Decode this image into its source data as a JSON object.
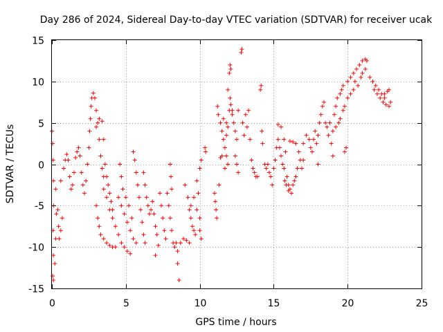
{
  "chart_data": {
    "type": "scatter",
    "title": "Day 286 of 2024, Sidereal Day-to-day VTEC variation (SDTVAR) for receiver ucak",
    "xlabel": "GPS time / hours",
    "ylabel": "SDTVAR / TECUs",
    "xlim": [
      0,
      25
    ],
    "ylim": [
      -15,
      15
    ],
    "xticks": [
      0,
      5,
      10,
      15,
      20,
      25
    ],
    "yticks": [
      -15,
      -10,
      -5,
      0,
      5,
      10,
      15
    ],
    "xtick_labels": [
      "0",
      "5",
      "10",
      "15",
      "20",
      "25"
    ],
    "ytick_labels": [
      "-15",
      "-10",
      "-5",
      "0",
      "5",
      "10",
      "15"
    ],
    "grid": true,
    "marker": "plus",
    "color": "#ff0000",
    "series": [
      {
        "name": "SDTVAR",
        "points": [
          [
            0.0,
            4.0
          ],
          [
            0.05,
            2.5
          ],
          [
            0.08,
            0.5
          ],
          [
            0.1,
            -2.0
          ],
          [
            0.12,
            -5.0
          ],
          [
            0.08,
            -8.0
          ],
          [
            0.1,
            -11.0
          ],
          [
            0.05,
            -13.5
          ],
          [
            0.1,
            -14.0
          ],
          [
            0.2,
            -12.0
          ],
          [
            0.25,
            -9.0
          ],
          [
            0.3,
            -6.0
          ],
          [
            0.25,
            -3.0
          ],
          [
            0.4,
            -5.5
          ],
          [
            0.45,
            -7.5
          ],
          [
            0.5,
            -9.0
          ],
          [
            0.6,
            -8.0
          ],
          [
            0.7,
            -6.5
          ],
          [
            0.6,
            -2.0
          ],
          [
            0.8,
            -0.5
          ],
          [
            0.9,
            0.5
          ],
          [
            1.0,
            1.2
          ],
          [
            1.1,
            0.5
          ],
          [
            1.2,
            -1.5
          ],
          [
            1.3,
            -3.0
          ],
          [
            1.4,
            -2.5
          ],
          [
            1.5,
            -1.0
          ],
          [
            1.6,
            0.8
          ],
          [
            1.7,
            1.5
          ],
          [
            1.8,
            2.0
          ],
          [
            1.9,
            1.0
          ],
          [
            2.0,
            -1.0
          ],
          [
            2.1,
            -2.5
          ],
          [
            2.2,
            -3.5
          ],
          [
            2.3,
            -2.0
          ],
          [
            2.4,
            0.0
          ],
          [
            2.5,
            2.0
          ],
          [
            2.55,
            4.0
          ],
          [
            2.6,
            5.5
          ],
          [
            2.65,
            7.0
          ],
          [
            2.7,
            8.0
          ],
          [
            2.8,
            8.6
          ],
          [
            2.9,
            8.0
          ],
          [
            3.0,
            6.5
          ],
          [
            3.1,
            5.0
          ],
          [
            3.2,
            3.0
          ],
          [
            3.3,
            1.0
          ],
          [
            3.4,
            -0.5
          ],
          [
            3.5,
            -1.5
          ],
          [
            3.0,
            4.5
          ],
          [
            3.2,
            5.5
          ],
          [
            3.4,
            5.2
          ],
          [
            3.5,
            3.0
          ],
          [
            3.6,
            0.0
          ],
          [
            3.7,
            -1.5
          ],
          [
            3.8,
            -2.5
          ],
          [
            3.9,
            -3.5
          ],
          [
            4.0,
            -4.5
          ],
          [
            4.1,
            -5.5
          ],
          [
            3.0,
            -5.0
          ],
          [
            3.1,
            -6.5
          ],
          [
            3.2,
            -7.5
          ],
          [
            3.3,
            -8.5
          ],
          [
            3.5,
            -9.0
          ],
          [
            3.7,
            -9.5
          ],
          [
            3.9,
            -9.8
          ],
          [
            4.1,
            -10.0
          ],
          [
            4.3,
            -10.0
          ],
          [
            3.5,
            -3.0
          ],
          [
            3.7,
            -4.0
          ],
          [
            3.9,
            -5.5
          ],
          [
            4.1,
            -6.5
          ],
          [
            4.3,
            -7.5
          ],
          [
            4.5,
            -8.5
          ],
          [
            4.7,
            -9.5
          ],
          [
            4.9,
            -10.0
          ],
          [
            5.1,
            -10.5
          ],
          [
            5.3,
            -10.8
          ],
          [
            4.5,
            -4.0
          ],
          [
            4.7,
            -5.0
          ],
          [
            4.9,
            -6.0
          ],
          [
            5.1,
            -7.0
          ],
          [
            5.3,
            -8.0
          ],
          [
            5.5,
            -9.0
          ],
          [
            5.7,
            -9.5
          ],
          [
            4.6,
            0.0
          ],
          [
            4.7,
            -1.5
          ],
          [
            4.8,
            -3.0
          ],
          [
            5.0,
            -4.0
          ],
          [
            5.2,
            -5.0
          ],
          [
            5.4,
            -6.5
          ],
          [
            5.5,
            1.5
          ],
          [
            5.6,
            0.5
          ],
          [
            5.7,
            -1.0
          ],
          [
            5.8,
            -2.5
          ],
          [
            5.9,
            -4.0
          ],
          [
            6.0,
            -5.5
          ],
          [
            6.1,
            -7.0
          ],
          [
            6.2,
            -8.5
          ],
          [
            6.3,
            -9.5
          ],
          [
            6.2,
            -1.0
          ],
          [
            6.3,
            -2.5
          ],
          [
            6.4,
            -4.0
          ],
          [
            6.5,
            -5.0
          ],
          [
            6.6,
            -6.0
          ],
          [
            6.7,
            -5.5
          ],
          [
            6.8,
            -4.5
          ],
          [
            6.9,
            -6.0
          ],
          [
            7.0,
            -7.5
          ],
          [
            7.1,
            -8.5
          ],
          [
            7.3,
            -3.5
          ],
          [
            7.4,
            -5.0
          ],
          [
            7.5,
            -6.5
          ],
          [
            7.6,
            -8.0
          ],
          [
            7.7,
            -9.0
          ],
          [
            7.2,
            -9.8
          ],
          [
            7.0,
            -11.0
          ],
          [
            7.8,
            -3.5
          ],
          [
            7.9,
            -5.0
          ],
          [
            8.0,
            -6.5
          ],
          [
            8.1,
            -8.0
          ],
          [
            8.2,
            -9.5
          ],
          [
            8.3,
            -10.0
          ],
          [
            8.0,
            0.0
          ],
          [
            8.05,
            -1.5
          ],
          [
            8.1,
            -3.0
          ],
          [
            8.4,
            -9.5
          ],
          [
            8.5,
            -12.0
          ],
          [
            8.6,
            -14.0
          ],
          [
            8.5,
            -10.5
          ],
          [
            8.7,
            -9.5
          ],
          [
            8.9,
            -9.0
          ],
          [
            9.1,
            -9.2
          ],
          [
            9.3,
            -9.5
          ],
          [
            9.0,
            -2.5
          ],
          [
            9.2,
            -4.0
          ],
          [
            9.3,
            -5.5
          ],
          [
            9.4,
            -6.5
          ],
          [
            9.5,
            -7.5
          ],
          [
            9.6,
            -8.0
          ],
          [
            9.7,
            -8.5
          ],
          [
            9.4,
            -5.0
          ],
          [
            9.6,
            -4.0
          ],
          [
            9.8,
            -5.5
          ],
          [
            10.0,
            -6.5
          ],
          [
            10.0,
            -8.0
          ],
          [
            10.1,
            -9.0
          ],
          [
            9.8,
            -2.0
          ],
          [
            9.9,
            -3.5
          ],
          [
            10.0,
            -0.5
          ],
          [
            10.1,
            0.5
          ],
          [
            10.4,
            1.5
          ],
          [
            10.35,
            2.0
          ],
          [
            11.0,
            -3.5
          ],
          [
            11.05,
            -4.5
          ],
          [
            11.1,
            -5.5
          ],
          [
            11.15,
            -6.5
          ],
          [
            11.3,
            -2.5
          ],
          [
            11.4,
            0.8
          ],
          [
            11.5,
            1.0
          ],
          [
            11.2,
            7.0
          ],
          [
            11.25,
            6.0
          ],
          [
            11.4,
            5.0
          ],
          [
            11.5,
            4.0
          ],
          [
            11.6,
            3.0
          ],
          [
            11.7,
            2.0
          ],
          [
            11.8,
            1.0
          ],
          [
            11.9,
            0.0
          ],
          [
            11.7,
            -0.5
          ],
          [
            11.6,
            5.5
          ],
          [
            11.8,
            5.0
          ],
          [
            11.9,
            4.5
          ],
          [
            11.8,
            3.5
          ],
          [
            12.0,
            6.5
          ],
          [
            12.1,
            7.2
          ],
          [
            12.2,
            6.5
          ],
          [
            11.9,
            9.0
          ],
          [
            12.05,
            8.0
          ],
          [
            12.0,
            11.0
          ],
          [
            12.05,
            12.0
          ],
          [
            12.1,
            11.5
          ],
          [
            12.2,
            6.0
          ],
          [
            12.3,
            5.0
          ],
          [
            12.4,
            4.0
          ],
          [
            12.5,
            3.0
          ],
          [
            12.6,
            6.5
          ],
          [
            12.4,
            1.0
          ],
          [
            12.5,
            0.0
          ],
          [
            12.6,
            -1.0
          ],
          [
            12.9,
            5.0
          ],
          [
            13.0,
            3.5
          ],
          [
            12.8,
            13.5
          ],
          [
            12.85,
            13.9
          ],
          [
            13.1,
            6.0
          ],
          [
            13.2,
            4.5
          ],
          [
            13.3,
            6.5
          ],
          [
            13.4,
            3.0
          ],
          [
            13.5,
            0.5
          ],
          [
            13.6,
            -0.5
          ],
          [
            13.7,
            -1.0
          ],
          [
            13.8,
            -1.5
          ],
          [
            13.9,
            -1.5
          ],
          [
            14.1,
            9.0
          ],
          [
            14.15,
            9.5
          ],
          [
            14.2,
            4.0
          ],
          [
            14.25,
            2.5
          ],
          [
            14.4,
            0.0
          ],
          [
            14.5,
            -0.5
          ],
          [
            14.6,
            0.0
          ],
          [
            14.7,
            -1.0
          ],
          [
            14.8,
            -1.5
          ],
          [
            14.9,
            -2.5
          ],
          [
            15.0,
            -0.5
          ],
          [
            15.1,
            0.5
          ],
          [
            15.2,
            2.0
          ],
          [
            15.3,
            3.0
          ],
          [
            15.4,
            2.0
          ],
          [
            15.5,
            1.0
          ],
          [
            15.6,
            0.0
          ],
          [
            15.7,
            -0.5
          ],
          [
            15.3,
            4.8
          ],
          [
            15.5,
            4.5
          ],
          [
            15.7,
            3.0
          ],
          [
            15.8,
            1.5
          ],
          [
            15.9,
            -1.5
          ],
          [
            16.0,
            -2.5
          ],
          [
            16.1,
            -3.0
          ],
          [
            16.2,
            -3.5
          ],
          [
            15.75,
            -2.0
          ],
          [
            15.85,
            -2.5
          ],
          [
            16.0,
            -3.2
          ],
          [
            16.3,
            -2.5
          ],
          [
            16.4,
            -2.0
          ],
          [
            16.5,
            -1.5
          ],
          [
            16.6,
            -0.5
          ],
          [
            16.1,
            2.8
          ],
          [
            16.3,
            2.7
          ],
          [
            16.5,
            2.5
          ],
          [
            16.7,
            1.5
          ],
          [
            16.8,
            0.5
          ],
          [
            16.9,
            -0.5
          ],
          [
            17.0,
            0.5
          ],
          [
            17.0,
            2.5
          ],
          [
            17.2,
            3.5
          ],
          [
            17.4,
            3.0
          ],
          [
            17.5,
            2.0
          ],
          [
            17.6,
            1.5
          ],
          [
            17.7,
            3.0
          ],
          [
            17.8,
            4.0
          ],
          [
            17.9,
            2.5
          ],
          [
            18.0,
            0.0
          ],
          [
            18.0,
            3.5
          ],
          [
            18.1,
            5.0
          ],
          [
            18.2,
            6.0
          ],
          [
            18.3,
            7.0
          ],
          [
            18.4,
            7.5
          ],
          [
            18.5,
            5.0
          ],
          [
            18.6,
            4.5
          ],
          [
            18.7,
            3.5
          ],
          [
            18.8,
            5.0
          ],
          [
            18.9,
            2.5
          ],
          [
            19.0,
            1.0
          ],
          [
            19.1,
            6.0
          ],
          [
            19.2,
            7.0
          ],
          [
            19.3,
            8.0
          ],
          [
            19.5,
            8.5
          ],
          [
            19.6,
            9.0
          ],
          [
            19.7,
            9.5
          ],
          [
            19.8,
            1.5
          ],
          [
            19.9,
            2.0
          ],
          [
            19.0,
            4.0
          ],
          [
            19.2,
            4.5
          ],
          [
            19.4,
            5.0
          ],
          [
            19.5,
            5.5
          ],
          [
            19.7,
            6.5
          ],
          [
            19.8,
            7.0
          ],
          [
            20.0,
            8.0
          ],
          [
            20.2,
            8.5
          ],
          [
            20.4,
            9.0
          ],
          [
            20.0,
            10.0
          ],
          [
            20.2,
            10.5
          ],
          [
            20.4,
            11.0
          ],
          [
            20.6,
            11.5
          ],
          [
            20.8,
            12.0
          ],
          [
            21.0,
            12.5
          ],
          [
            21.2,
            12.7
          ],
          [
            21.3,
            12.5
          ],
          [
            20.5,
            10.0
          ],
          [
            20.7,
            9.5
          ],
          [
            20.9,
            10.5
          ],
          [
            21.0,
            11.0
          ],
          [
            21.2,
            11.5
          ],
          [
            21.5,
            10.5
          ],
          [
            21.7,
            10.0
          ],
          [
            21.9,
            9.5
          ],
          [
            22.1,
            9.0
          ],
          [
            22.3,
            8.5
          ],
          [
            22.5,
            8.5
          ],
          [
            22.7,
            8.8
          ],
          [
            22.8,
            9.0
          ],
          [
            21.8,
            9.0
          ],
          [
            22.0,
            8.5
          ],
          [
            22.2,
            8.0
          ],
          [
            22.4,
            7.5
          ],
          [
            22.6,
            7.2
          ],
          [
            22.8,
            7.0
          ],
          [
            22.9,
            7.5
          ],
          [
            22.5,
            8.0
          ]
        ]
      }
    ]
  }
}
